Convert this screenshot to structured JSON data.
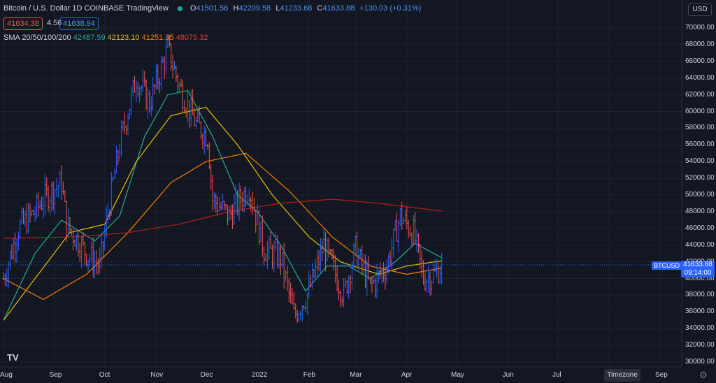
{
  "header": {
    "title": "Bitcoin / U.S. Dollar  1D  COINBASE  TradingView",
    "ohlc": [
      {
        "k": "O",
        "v": "41501.56"
      },
      {
        "k": "H",
        "v": "42209.58"
      },
      {
        "k": "L",
        "v": "41233.68"
      },
      {
        "k": "C",
        "v": "41633.88"
      },
      {
        "k": "",
        "v": "+130.03 (+0.31%)"
      }
    ],
    "sell_price": "41634.38",
    "spread": "4.56",
    "buy_price": "41638.94"
  },
  "sma": {
    "label": "SMA 20/50/100/200",
    "values": [
      {
        "v": "42487.59",
        "color": "#26a69a"
      },
      {
        "v": "42123.10",
        "color": "#e5c100"
      },
      {
        "v": "41251.35",
        "color": "#f57c00"
      },
      {
        "v": "48075.32",
        "color": "#e53935"
      }
    ]
  },
  "currency_button": "USD",
  "symbol_tag": "BTCUSD",
  "last_price": "41633.88",
  "countdown": "09:14:00",
  "timezone_button": "Timezone",
  "logo_text": "TV",
  "colors": {
    "up": "#2962ff",
    "down": "#ef5350",
    "sma20": "#26a69a",
    "sma50": "#e5c100",
    "sma100": "#f57c00",
    "sma200": "#b71c1c",
    "bg": "#131722"
  },
  "chart_data": {
    "type": "line",
    "ylim": [
      30000,
      72000
    ],
    "yticks": [
      "30000.00",
      "32000.00",
      "34000.00",
      "36000.00",
      "38000.00",
      "40000.00",
      "42000.00",
      "44000.00",
      "46000.00",
      "48000.00",
      "50000.00",
      "52000.00",
      "54000.00",
      "56000.00",
      "58000.00",
      "60000.00",
      "62000.00",
      "64000.00",
      "66000.00",
      "68000.00",
      "70000.00"
    ],
    "xticks": [
      "Aug",
      "Sep",
      "Oct",
      "Nov",
      "Dec",
      "2022",
      "Feb",
      "Mar",
      "Apr",
      "May",
      "Jun",
      "Jul",
      "Aug",
      "Sep"
    ],
    "price_close": [
      {
        "x": "2021-08-01",
        "y": 40000
      },
      {
        "x": "2021-08-10",
        "y": 46000
      },
      {
        "x": "2021-08-20",
        "y": 48000
      },
      {
        "x": "2021-08-25",
        "y": 49500
      },
      {
        "x": "2021-09-05",
        "y": 51500
      },
      {
        "x": "2021-09-08",
        "y": 46500
      },
      {
        "x": "2021-09-20",
        "y": 43000
      },
      {
        "x": "2021-09-28",
        "y": 41500
      },
      {
        "x": "2021-10-03",
        "y": 48000
      },
      {
        "x": "2021-10-10",
        "y": 56000
      },
      {
        "x": "2021-10-20",
        "y": 64000
      },
      {
        "x": "2021-10-28",
        "y": 61000
      },
      {
        "x": "2021-11-08",
        "y": 67500
      },
      {
        "x": "2021-11-15",
        "y": 63000
      },
      {
        "x": "2021-11-25",
        "y": 58500
      },
      {
        "x": "2021-12-02",
        "y": 57000
      },
      {
        "x": "2021-12-05",
        "y": 49500
      },
      {
        "x": "2021-12-15",
        "y": 47500
      },
      {
        "x": "2021-12-27",
        "y": 51000
      },
      {
        "x": "2022-01-05",
        "y": 43500
      },
      {
        "x": "2022-01-15",
        "y": 42500
      },
      {
        "x": "2022-01-23",
        "y": 35500
      },
      {
        "x": "2022-02-01",
        "y": 38500
      },
      {
        "x": "2022-02-10",
        "y": 44000
      },
      {
        "x": "2022-02-22",
        "y": 38000
      },
      {
        "x": "2022-03-01",
        "y": 43500
      },
      {
        "x": "2022-03-10",
        "y": 39000
      },
      {
        "x": "2022-03-20",
        "y": 41500
      },
      {
        "x": "2022-03-28",
        "y": 47500
      },
      {
        "x": "2022-04-05",
        "y": 45500
      },
      {
        "x": "2022-04-11",
        "y": 40000
      },
      {
        "x": "2022-04-18",
        "y": 40500
      },
      {
        "x": "2022-04-22",
        "y": 41634
      }
    ],
    "series": [
      {
        "name": "SMA 20",
        "color": "#26a69a",
        "points": [
          {
            "x": "2021-08-01",
            "y": 35000
          },
          {
            "x": "2021-08-20",
            "y": 43000
          },
          {
            "x": "2021-09-05",
            "y": 47000
          },
          {
            "x": "2021-09-25",
            "y": 44500
          },
          {
            "x": "2021-10-10",
            "y": 47500
          },
          {
            "x": "2021-10-25",
            "y": 57000
          },
          {
            "x": "2021-11-08",
            "y": 62000
          },
          {
            "x": "2021-11-20",
            "y": 62500
          },
          {
            "x": "2021-12-05",
            "y": 57000
          },
          {
            "x": "2021-12-20",
            "y": 50000
          },
          {
            "x": "2022-01-01",
            "y": 48000
          },
          {
            "x": "2022-01-15",
            "y": 44000
          },
          {
            "x": "2022-01-30",
            "y": 38500
          },
          {
            "x": "2022-02-12",
            "y": 41500
          },
          {
            "x": "2022-02-25",
            "y": 41500
          },
          {
            "x": "2022-03-10",
            "y": 40000
          },
          {
            "x": "2022-03-25",
            "y": 42000
          },
          {
            "x": "2022-04-06",
            "y": 44200
          },
          {
            "x": "2022-04-22",
            "y": 42487
          }
        ]
      },
      {
        "name": "SMA 50",
        "color": "#e5c100",
        "points": [
          {
            "x": "2021-08-01",
            "y": 35000
          },
          {
            "x": "2021-08-20",
            "y": 40000
          },
          {
            "x": "2021-09-10",
            "y": 45500
          },
          {
            "x": "2021-10-01",
            "y": 46500
          },
          {
            "x": "2021-10-20",
            "y": 54000
          },
          {
            "x": "2021-11-10",
            "y": 59500
          },
          {
            "x": "2021-12-01",
            "y": 60500
          },
          {
            "x": "2021-12-20",
            "y": 56000
          },
          {
            "x": "2022-01-10",
            "y": 50000
          },
          {
            "x": "2022-02-01",
            "y": 45000
          },
          {
            "x": "2022-02-20",
            "y": 42000
          },
          {
            "x": "2022-03-15",
            "y": 40500
          },
          {
            "x": "2022-04-01",
            "y": 41500
          },
          {
            "x": "2022-04-22",
            "y": 42123
          }
        ]
      },
      {
        "name": "SMA 100",
        "color": "#f57c00",
        "points": [
          {
            "x": "2021-08-01",
            "y": 40000
          },
          {
            "x": "2021-08-25",
            "y": 37500
          },
          {
            "x": "2021-09-20",
            "y": 40500
          },
          {
            "x": "2021-10-15",
            "y": 45500
          },
          {
            "x": "2021-11-10",
            "y": 51500
          },
          {
            "x": "2021-12-01",
            "y": 54000
          },
          {
            "x": "2021-12-25",
            "y": 55000
          },
          {
            "x": "2022-01-20",
            "y": 50500
          },
          {
            "x": "2022-02-15",
            "y": 45000
          },
          {
            "x": "2022-03-10",
            "y": 41500
          },
          {
            "x": "2022-04-01",
            "y": 40500
          },
          {
            "x": "2022-04-22",
            "y": 41251
          }
        ]
      },
      {
        "name": "SMA 200",
        "color": "#b71c1c",
        "points": [
          {
            "x": "2021-08-01",
            "y": 44800
          },
          {
            "x": "2021-09-15",
            "y": 45000
          },
          {
            "x": "2021-10-15",
            "y": 45500
          },
          {
            "x": "2021-11-15",
            "y": 46500
          },
          {
            "x": "2021-12-15",
            "y": 48000
          },
          {
            "x": "2022-01-15",
            "y": 49000
          },
          {
            "x": "2022-02-15",
            "y": 49500
          },
          {
            "x": "2022-03-15",
            "y": 49000
          },
          {
            "x": "2022-04-22",
            "y": 48075
          }
        ]
      }
    ]
  }
}
